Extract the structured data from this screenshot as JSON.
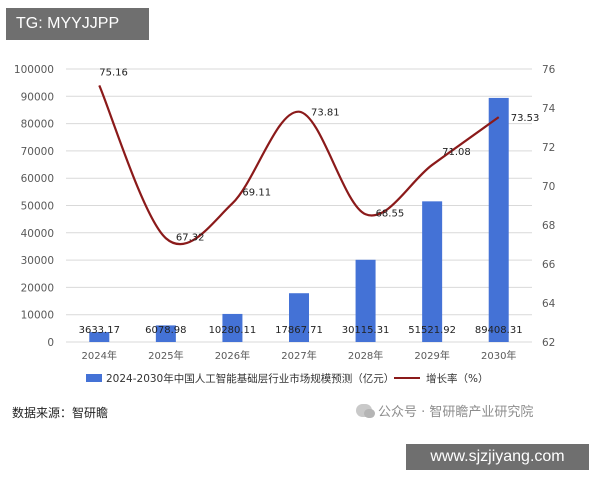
{
  "watermark_top": "TG: MYYJJPP",
  "source_note": "数据来源：智研瞻",
  "wechat_mark": "公众号 · 智研瞻产业研究院",
  "url_banner": "www.sjzjiyang.com",
  "colors": {
    "bar": "#4472d6",
    "line": "#8b1a1a",
    "grid": "#d9d9d9",
    "axis_text": "#595959"
  },
  "chart_data": {
    "type": "bar",
    "title": "",
    "categories": [
      "2024年",
      "2025年",
      "2026年",
      "2027年",
      "2028年",
      "2029年",
      "2030年"
    ],
    "series": [
      {
        "name": "2024-2030年中国人工智能基础层行业市场规模预测（亿元）",
        "type": "bar",
        "axis": "left",
        "values": [
          3633.17,
          6078.98,
          10280.11,
          17867.71,
          30115.31,
          51521.92,
          89408.31
        ],
        "labels": [
          "3633.17",
          "6078.98",
          "10280.11",
          "17867.71",
          "30115.31",
          "51521.92",
          "89408.31"
        ]
      },
      {
        "name": "增长率（%）",
        "type": "line",
        "axis": "right",
        "values": [
          75.16,
          67.32,
          69.11,
          73.81,
          68.55,
          71.08,
          73.53
        ],
        "labels": [
          "75.16",
          "67.32",
          "69.11",
          "73.81",
          "68.55",
          "71.08",
          "73.53"
        ]
      }
    ],
    "ylim_left": [
      0,
      100000
    ],
    "yticks_left": [
      "0",
      "10000",
      "20000",
      "30000",
      "40000",
      "50000",
      "60000",
      "70000",
      "80000",
      "90000",
      "100000"
    ],
    "ylim_right": [
      62,
      76
    ],
    "yticks_right": [
      "62",
      "64",
      "66",
      "68",
      "70",
      "72",
      "74",
      "76"
    ],
    "grid": true,
    "legend_position": "bottom"
  }
}
